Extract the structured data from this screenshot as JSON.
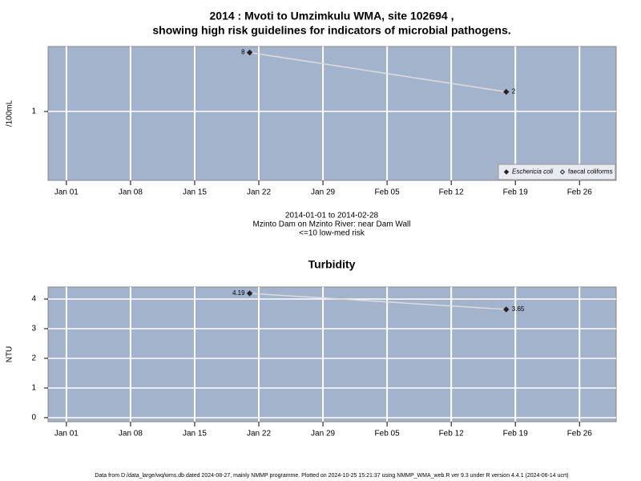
{
  "chart_data": [
    {
      "type": "line",
      "title": [
        "2014 : Mvoti to Umzimkulu WMA, site 102694 ,",
        "showing high risk guidelines for indicators of microbial pathogens."
      ],
      "ylabel": "/100mL",
      "annotations": [
        "2014-01-01 to 2014-02-28",
        "Mzinto Dam on Mzinto River: near Dam Wall",
        "<=10 low-med risk"
      ],
      "x": [
        "2014-01-21",
        "2014-02-18"
      ],
      "series": [
        {
          "name": "Eschericia coli",
          "color": "#222222",
          "marker": "filled",
          "values": [
            8,
            2
          ]
        },
        {
          "name": "faecal coliforms",
          "color": "#222222",
          "marker": "open",
          "values": [
            null,
            null
          ]
        }
      ],
      "log_y": true,
      "ylim": [
        0.088,
        9.9
      ],
      "yticks": [
        1
      ],
      "xlim": [
        "2013-12-30",
        "2014-03-02"
      ],
      "xticks": [
        {
          "value": "2014-01-01",
          "label": "Jan 01"
        },
        {
          "value": "2014-01-08",
          "label": "Jan 08"
        },
        {
          "value": "2014-01-15",
          "label": "Jan 15"
        },
        {
          "value": "2014-01-22",
          "label": "Jan 22"
        },
        {
          "value": "2014-01-29",
          "label": "Jan 29"
        },
        {
          "value": "2014-02-05",
          "label": "Feb 05"
        },
        {
          "value": "2014-02-12",
          "label": "Feb 12"
        },
        {
          "value": "2014-02-19",
          "label": "Feb 19"
        },
        {
          "value": "2014-02-26",
          "label": "Feb 26"
        }
      ],
      "grid": true,
      "legend": "bottom-right",
      "background": "#a3b3cb",
      "line_color": "#dddddd"
    },
    {
      "type": "line",
      "title": [
        "Turbidity"
      ],
      "ylabel": "NTU",
      "x": [
        "2014-01-21",
        "2014-02-18"
      ],
      "series": [
        {
          "name": "Turbidity",
          "color": "#222222",
          "marker": "filled",
          "values": [
            4.19,
            3.65
          ]
        }
      ],
      "log_y": false,
      "ylim": [
        -0.135,
        4.405
      ],
      "yticks": [
        0,
        1,
        2,
        3,
        4
      ],
      "xlim": [
        "2013-12-30",
        "2014-03-02"
      ],
      "xticks": [
        {
          "value": "2014-01-01",
          "label": "Jan 01"
        },
        {
          "value": "2014-01-08",
          "label": "Jan 08"
        },
        {
          "value": "2014-01-15",
          "label": "Jan 15"
        },
        {
          "value": "2014-01-22",
          "label": "Jan 22"
        },
        {
          "value": "2014-01-29",
          "label": "Jan 29"
        },
        {
          "value": "2014-02-05",
          "label": "Feb 05"
        },
        {
          "value": "2014-02-12",
          "label": "Feb 12"
        },
        {
          "value": "2014-02-19",
          "label": "Feb 19"
        },
        {
          "value": "2014-02-26",
          "label": "Feb 26"
        }
      ],
      "grid": true,
      "background": "#a3b3cb",
      "line_color": "#dddddd"
    }
  ],
  "footer": "Data from D:/data_large/wq/wms.db dated 2024-08-27, mainly NMMP programme. Plotted on 2024-10-25 15:21:37 using NMMP_WMA_web.R ver 9.3 under R version 4.4.1 (2024-06-14 ucrt)"
}
